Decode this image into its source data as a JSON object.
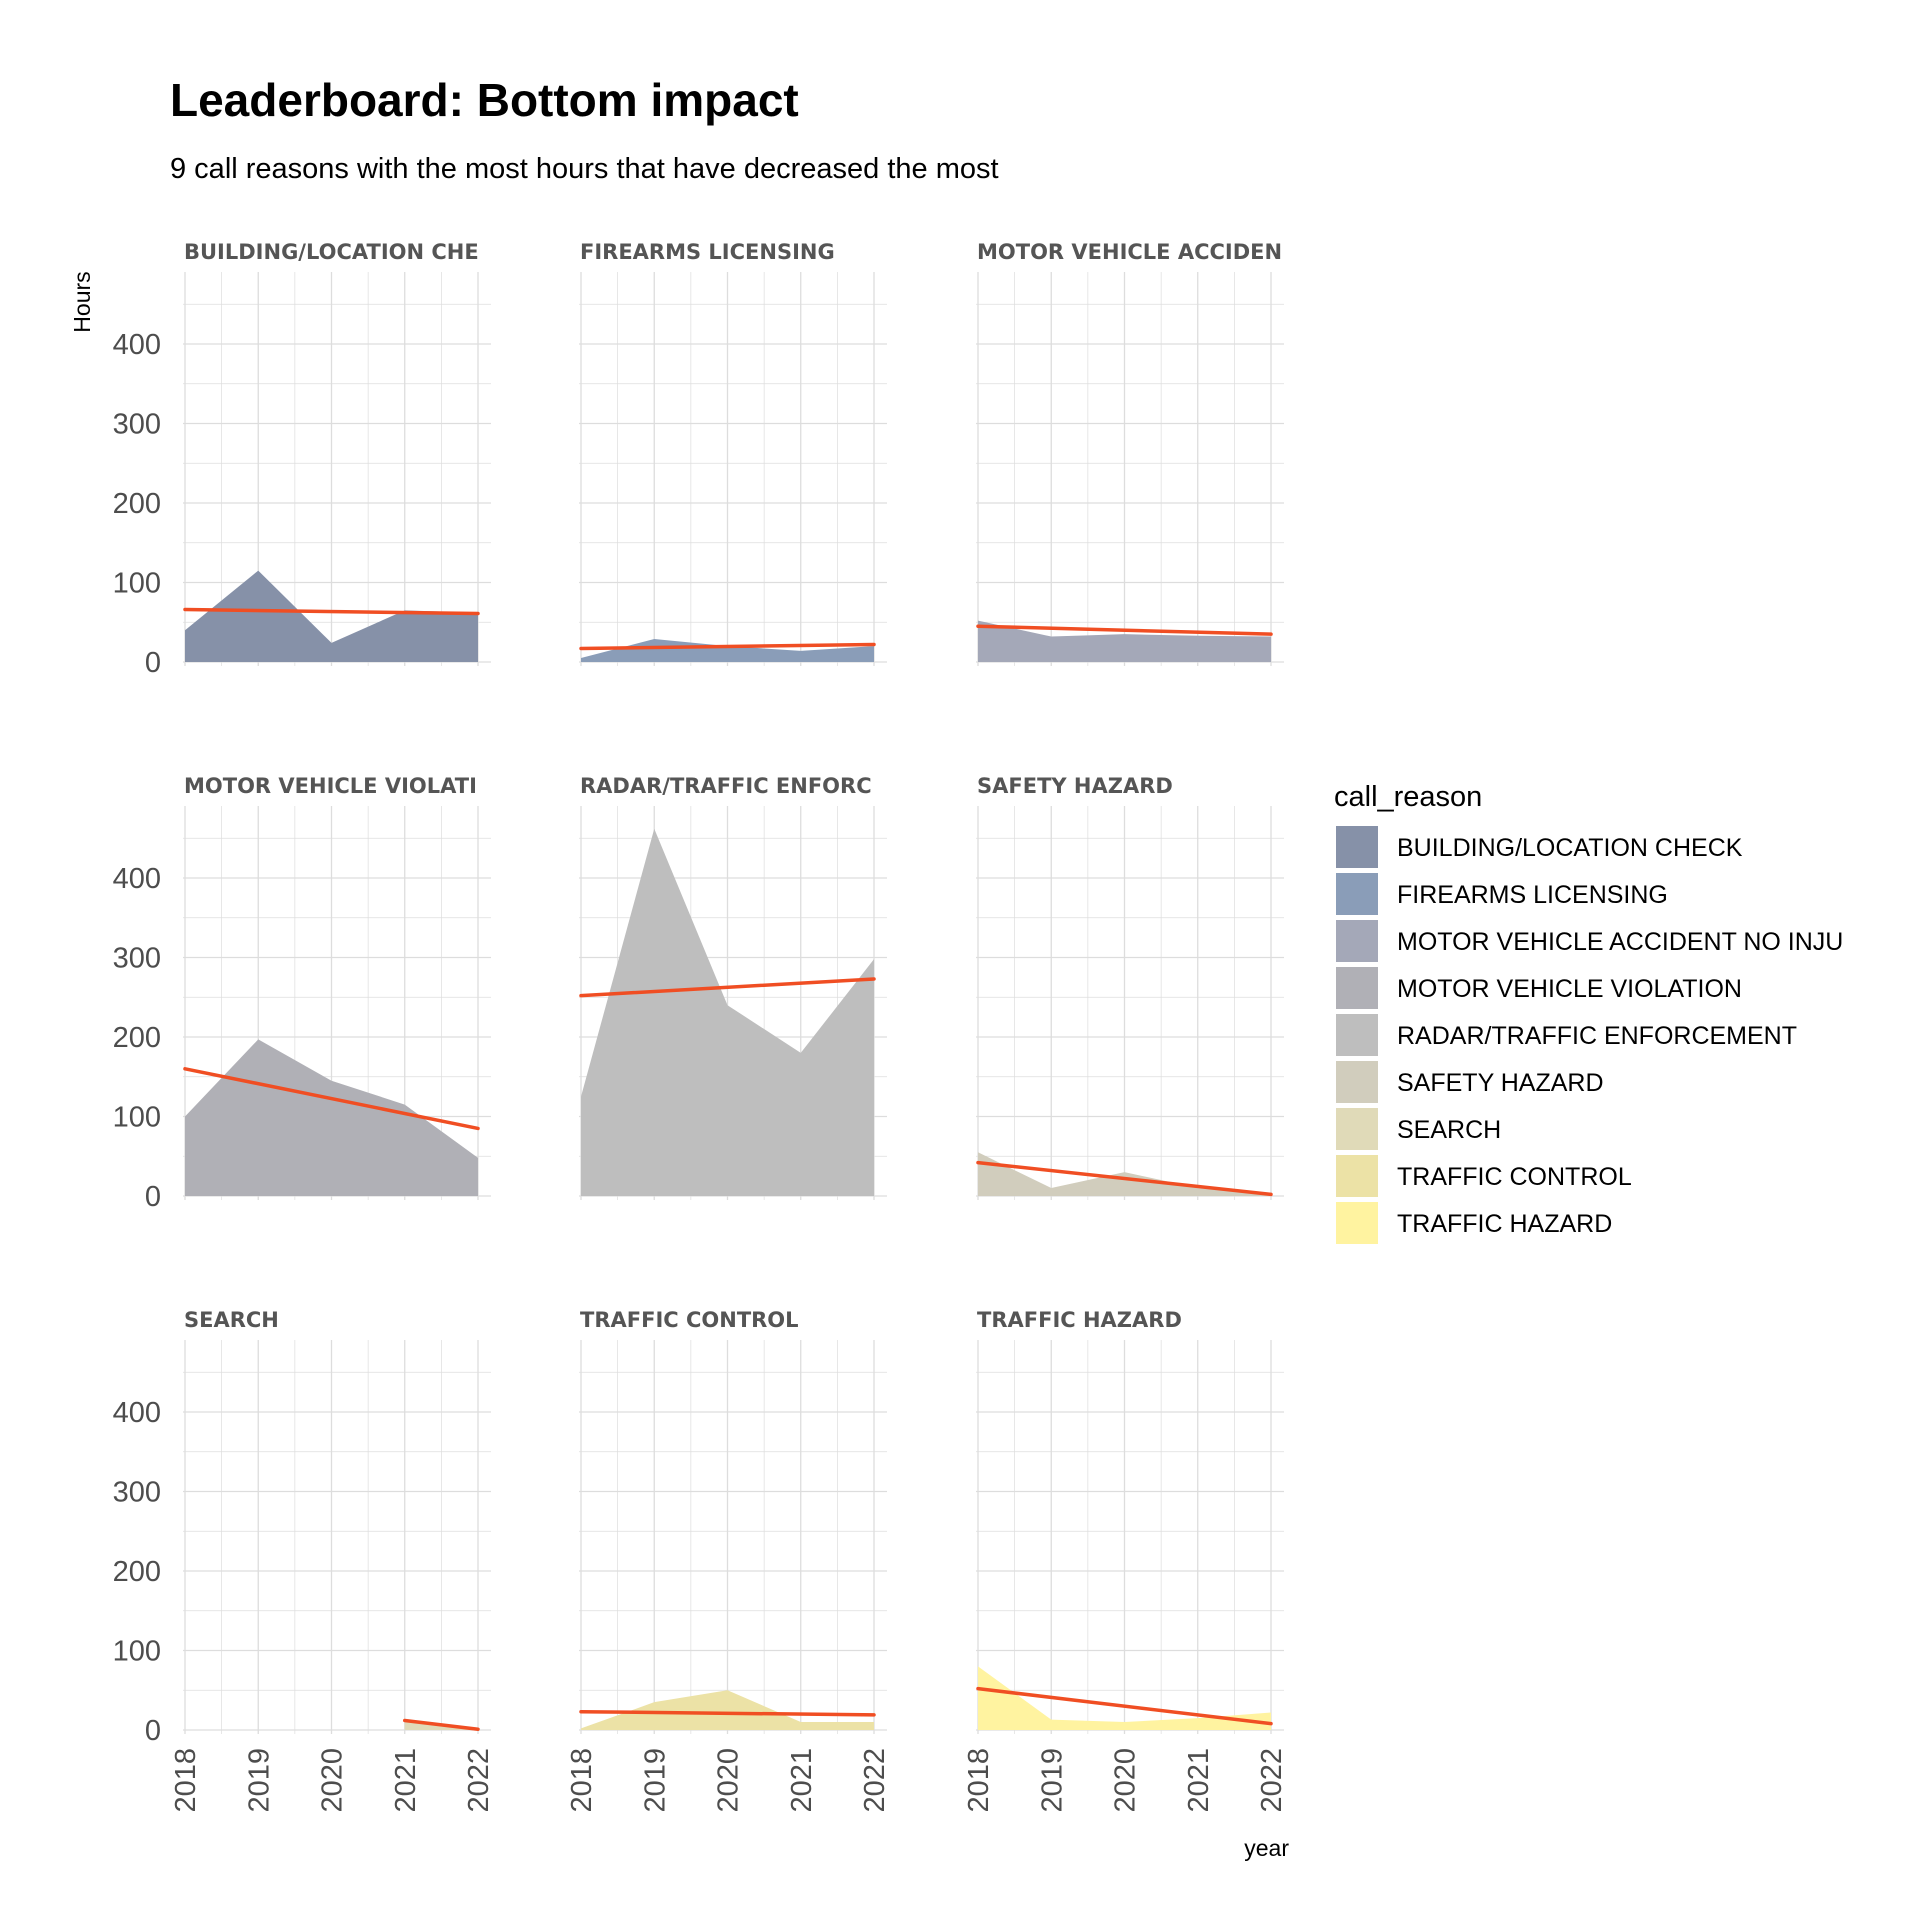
{
  "title": "Leaderboard: Bottom impact",
  "subtitle": "9 call reasons with the most hours that have decreased the most",
  "chart_data": {
    "type": "area",
    "facets": true,
    "x": [
      2018,
      2019,
      2020,
      2021,
      2022
    ],
    "xlabel": "year",
    "ylabel": "Hours",
    "ylim": [
      0,
      490
    ],
    "yticks": [
      0,
      100,
      200,
      300,
      400
    ],
    "xticks": [
      "2018",
      "2019",
      "2020",
      "2021",
      "2022"
    ],
    "grid": true,
    "legend_position": "right",
    "legend_title": "call_reason",
    "trend_color": "#f04e23",
    "series": [
      {
        "name": "BUILDING/LOCATION CHECK",
        "strip_label": "BUILDING/LOCATION CHE",
        "color": "#8691a8",
        "values": [
          40,
          115,
          24,
          65,
          62
        ],
        "trend": [
          66,
          61
        ]
      },
      {
        "name": "FIREARMS LICENSING",
        "strip_label": "FIREARMS LICENSING",
        "color": "#8a9db8",
        "values": [
          5,
          29,
          20,
          14,
          20
        ],
        "trend": [
          17,
          22
        ]
      },
      {
        "name": "MOTOR VEHICLE ACCIDENT NO INJU",
        "strip_label": "MOTOR VEHICLE ACCIDEN",
        "color": "#a4a8b8",
        "values": [
          52,
          32,
          35,
          33,
          32
        ],
        "trend": [
          45,
          35
        ]
      },
      {
        "name": "MOTOR VEHICLE VIOLATION",
        "strip_label": "MOTOR VEHICLE VIOLATI",
        "color": "#b0b0b6",
        "values": [
          100,
          197,
          145,
          115,
          48
        ],
        "trend": [
          160,
          85
        ]
      },
      {
        "name": "RADAR/TRAFFIC ENFORCEMENT",
        "strip_label": "RADAR/TRAFFIC ENFORC",
        "color": "#bebebe",
        "values": [
          125,
          462,
          240,
          180,
          298
        ],
        "trend": [
          252,
          273
        ]
      },
      {
        "name": "SAFETY HAZARD",
        "strip_label": "SAFETY HAZARD",
        "color": "#d1cdbd",
        "values": [
          55,
          10,
          30,
          10,
          3
        ],
        "trend": [
          42,
          2
        ]
      },
      {
        "name": "SEARCH",
        "strip_label": "SEARCH",
        "color": "#e0dab8",
        "values": [
          null,
          null,
          null,
          10,
          3
        ],
        "trend": [
          null,
          null,
          null,
          12,
          1
        ]
      },
      {
        "name": "TRAFFIC CONTROL",
        "strip_label": "TRAFFIC CONTROL",
        "color": "#ece2a6",
        "values": [
          2,
          35,
          50,
          10,
          10
        ],
        "trend": [
          23,
          19
        ]
      },
      {
        "name": "TRAFFIC HAZARD",
        "strip_label": "TRAFFIC HAZARD",
        "color": "#fff3a0",
        "values": [
          80,
          13,
          10,
          15,
          22
        ],
        "trend": [
          52,
          8
        ]
      }
    ]
  }
}
